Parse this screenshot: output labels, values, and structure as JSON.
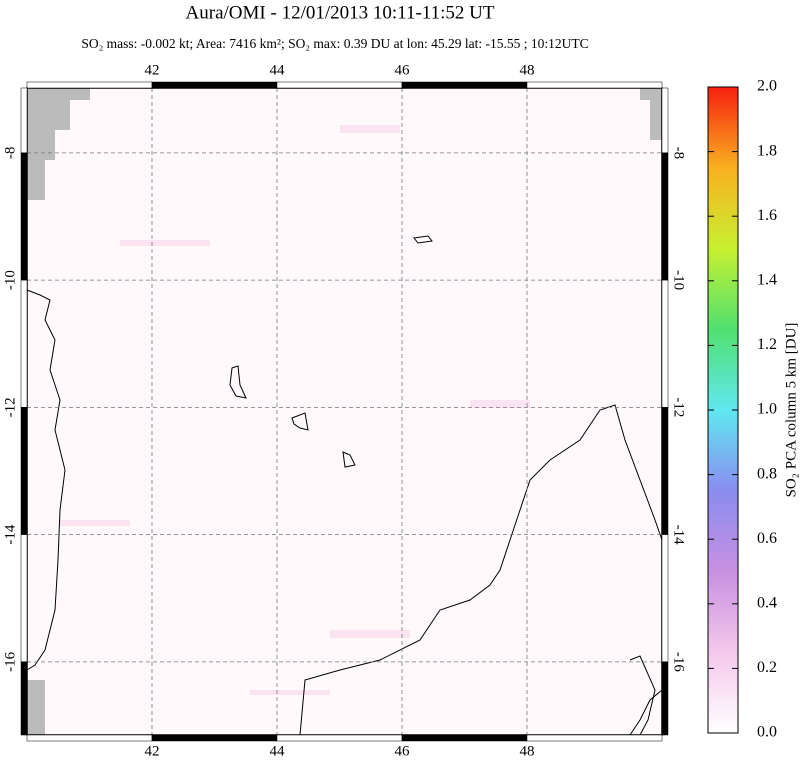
{
  "chart_data": {
    "type": "map",
    "title": "Aura/OMI - 12/01/2013 10:11-11:52 UT",
    "subtitle": "SO₂ mass: -0.002 kt; Area: 7416 km²; SO₂ max: 0.39 DU at lon: 45.29 lat: -15.55 ; 10:12UTC",
    "xlim": [
      40,
      50.16
    ],
    "ylim": [
      -17.15,
      -6.98
    ],
    "xticks": [
      42,
      44,
      46,
      48
    ],
    "yticks": [
      -8,
      -10,
      -12,
      -14,
      -16
    ],
    "grid": true,
    "colorbar": {
      "label": "SO₂ PCA column 5 km [DU]",
      "lim": [
        0,
        2
      ],
      "ticks": [
        {
          "value": 0,
          "label": "0.0"
        },
        0.2,
        0.4,
        0.6,
        0.8,
        {
          "value": 1,
          "label": "1.0"
        },
        1.2,
        1.4,
        1.6,
        1.8,
        {
          "value": 2,
          "label": "2.0"
        }
      ],
      "colors": [
        "#ffffff",
        "#f4c8ec",
        "#c890e0",
        "#8a8cf0",
        "#60e8f0",
        "#50e070",
        "#c8f030",
        "#f8b020",
        "#f82010"
      ]
    }
  }
}
